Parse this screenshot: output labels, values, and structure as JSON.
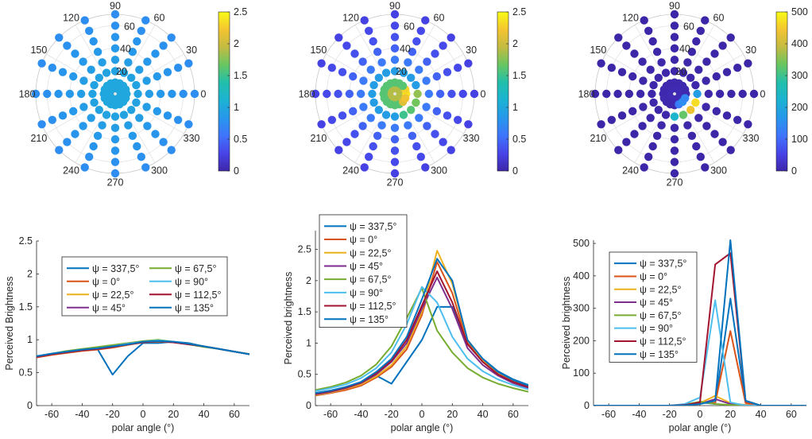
{
  "chart_data": [
    {
      "type": "scatter",
      "subtype": "polar",
      "angle_ticks": [
        "0",
        "30",
        "60",
        "90",
        "120",
        "150",
        "180",
        "210",
        "240",
        "270",
        "300",
        "330"
      ],
      "radius_ticks": [
        "20",
        "40",
        "60"
      ],
      "rlim": [
        0,
        70
      ],
      "radii": [
        5,
        10,
        20,
        30,
        40,
        50,
        60,
        70
      ],
      "colorbar": {
        "ticks": [
          "0",
          "0.5",
          "1",
          "1.5",
          "2",
          "2.5"
        ],
        "clim": [
          0,
          2.5
        ]
      },
      "colormap": [
        "#3e26a8",
        "#4744e8",
        "#3f74fc",
        "#2797eb",
        "#1cb2d3",
        "#21bfab",
        "#68c662",
        "#c2bb41",
        "#f4c431",
        "#f9fb15"
      ],
      "ring_values": {
        "5": 1.0,
        "10": 1.0,
        "20": 0.95,
        "30": 0.9,
        "40": 0.85,
        "50": 0.82,
        "60": 0.78,
        "70": 0.75
      },
      "hotspots": []
    },
    {
      "type": "scatter",
      "subtype": "polar",
      "angle_ticks": [
        "0",
        "30",
        "60",
        "90",
        "120",
        "150",
        "180",
        "210",
        "240",
        "270",
        "300",
        "330"
      ],
      "radius_ticks": [
        "20",
        "40",
        "60"
      ],
      "rlim": [
        0,
        70
      ],
      "radii": [
        5,
        10,
        20,
        30,
        40,
        50,
        60,
        70
      ],
      "colorbar": {
        "ticks": [
          "0",
          "0.5",
          "1",
          "1.5",
          "2",
          "2.5"
        ],
        "clim": [
          0,
          2.5
        ]
      },
      "colormap": [
        "#3e26a8",
        "#4744e8",
        "#3f74fc",
        "#2797eb",
        "#1cb2d3",
        "#21bfab",
        "#68c662",
        "#c2bb41",
        "#f4c431",
        "#f9fb15"
      ],
      "ring_values": {
        "5": 1.9,
        "10": 1.6,
        "20": 0.9,
        "30": 0.6,
        "40": 0.45,
        "50": 0.35,
        "60": 0.3,
        "70": 0.25
      },
      "hotspots": [
        {
          "r": 5,
          "angle": 0,
          "value": 2.3
        },
        {
          "r": 10,
          "angle": 0,
          "value": 2.4
        },
        {
          "r": 10,
          "angle": 337.5,
          "value": 2.2
        },
        {
          "r": 10,
          "angle": 22.5,
          "value": 2.3
        },
        {
          "r": 10,
          "angle": 315,
          "value": 2.1
        },
        {
          "r": 20,
          "angle": 0,
          "value": 1.8
        },
        {
          "r": 20,
          "angle": 337.5,
          "value": 1.7
        },
        {
          "r": 20,
          "angle": 315,
          "value": 1.6
        },
        {
          "r": 20,
          "angle": 292.5,
          "value": 1.5
        }
      ]
    },
    {
      "type": "scatter",
      "subtype": "polar",
      "angle_ticks": [
        "0",
        "30",
        "60",
        "90",
        "120",
        "150",
        "180",
        "210",
        "240",
        "270",
        "300",
        "330"
      ],
      "radius_ticks": [
        "20",
        "40",
        "60"
      ],
      "rlim": [
        0,
        70
      ],
      "radii": [
        5,
        10,
        20,
        30,
        40,
        50,
        60,
        70
      ],
      "colorbar": {
        "ticks": [
          "0",
          "100",
          "200",
          "300",
          "400",
          "500"
        ],
        "clim": [
          0,
          500
        ]
      },
      "colormap": [
        "#3e26a8",
        "#4744e8",
        "#3f74fc",
        "#2797eb",
        "#1cb2d3",
        "#21bfab",
        "#68c662",
        "#c2bb41",
        "#f4c431",
        "#f9fb15"
      ],
      "ring_values": {
        "5": 10,
        "10": 5,
        "20": 2,
        "30": 1,
        "40": 0,
        "50": 0,
        "60": 0,
        "70": 0
      },
      "hotspots": [
        {
          "r": 20,
          "angle": 337.5,
          "value": 470
        },
        {
          "r": 20,
          "angle": 315,
          "value": 440
        },
        {
          "r": 20,
          "angle": 292.5,
          "value": 330
        },
        {
          "r": 20,
          "angle": 270,
          "value": 230
        },
        {
          "r": 10,
          "angle": 315,
          "value": 150
        },
        {
          "r": 10,
          "angle": 337.5,
          "value": 140
        },
        {
          "r": 10,
          "angle": 292.5,
          "value": 120
        },
        {
          "r": 20,
          "angle": 0,
          "value": 180
        }
      ]
    },
    {
      "type": "line",
      "ylabel": "Perceived Brightness",
      "xlabel": "polar angle (°)",
      "xlim": [
        -70,
        70
      ],
      "ylim": [
        0,
        2.5
      ],
      "xticks": [
        "-60",
        "-40",
        "-20",
        "0",
        "20",
        "40",
        "60"
      ],
      "yticks": [
        "0",
        "0.5",
        "1",
        "1.5",
        "2",
        "2.5"
      ],
      "legend_columns": 2,
      "legend_position": "center",
      "x": [
        -70,
        -60,
        -50,
        -40,
        -30,
        -20,
        -10,
        0,
        10,
        20,
        30,
        40,
        50,
        60,
        70
      ],
      "series": [
        {
          "name": "ψ = 337,5°",
          "color": "#0072bd",
          "values": [
            0.74,
            0.78,
            0.82,
            0.84,
            0.86,
            0.47,
            0.75,
            0.95,
            0.95,
            0.97,
            0.95,
            0.9,
            0.86,
            0.82,
            0.78
          ]
        },
        {
          "name": "ψ = 0°",
          "color": "#d95319",
          "values": [
            0.73,
            0.77,
            0.8,
            0.83,
            0.85,
            0.88,
            0.92,
            0.96,
            0.97,
            0.96,
            0.94,
            0.9,
            0.86,
            0.82,
            0.78
          ]
        },
        {
          "name": "ψ = 22,5°",
          "color": "#edb120",
          "values": [
            0.74,
            0.78,
            0.81,
            0.84,
            0.86,
            0.89,
            0.93,
            0.96,
            0.98,
            0.96,
            0.94,
            0.9,
            0.86,
            0.82,
            0.78
          ]
        },
        {
          "name": "ψ = 45°",
          "color": "#7e2f8e",
          "values": [
            0.74,
            0.78,
            0.81,
            0.84,
            0.86,
            0.89,
            0.93,
            0.96,
            0.98,
            0.96,
            0.93,
            0.9,
            0.86,
            0.82,
            0.78
          ]
        },
        {
          "name": "ψ = 67,5°",
          "color": "#77ac30",
          "values": [
            0.75,
            0.79,
            0.83,
            0.86,
            0.89,
            0.92,
            0.95,
            0.98,
            1.0,
            0.97,
            0.93,
            0.89,
            0.86,
            0.82,
            0.78
          ]
        },
        {
          "name": "ψ = 90°",
          "color": "#4dbeee",
          "values": [
            0.75,
            0.79,
            0.82,
            0.85,
            0.87,
            0.9,
            0.94,
            0.97,
            0.99,
            0.97,
            0.94,
            0.9,
            0.86,
            0.82,
            0.78
          ]
        },
        {
          "name": "ψ = 112,5°",
          "color": "#a2142f",
          "values": [
            0.74,
            0.78,
            0.81,
            0.84,
            0.86,
            0.89,
            0.93,
            0.96,
            0.98,
            0.96,
            0.93,
            0.9,
            0.86,
            0.82,
            0.78
          ]
        },
        {
          "name": "ψ = 135°",
          "color": "#0072bd",
          "values": [
            0.75,
            0.79,
            0.82,
            0.85,
            0.87,
            0.9,
            0.93,
            0.97,
            0.98,
            0.97,
            0.94,
            0.9,
            0.86,
            0.82,
            0.78
          ]
        }
      ]
    },
    {
      "type": "line",
      "ylabel": "Perceived brightness",
      "xlabel": "polar angle (°)",
      "xlim": [
        -70,
        70
      ],
      "ylim": [
        0,
        2.8
      ],
      "xticks": [
        "-60",
        "-40",
        "-20",
        "0",
        "20",
        "40",
        "60"
      ],
      "yticks": [
        "0",
        "0.5",
        "1",
        "1.5",
        "2",
        "2.5"
      ],
      "legend_columns": 1,
      "legend_position": "top-left",
      "x": [
        -70,
        -60,
        -50,
        -40,
        -30,
        -20,
        -10,
        0,
        10,
        20,
        30,
        40,
        50,
        60,
        70
      ],
      "series": [
        {
          "name": "ψ = 337,5°",
          "color": "#0072bd",
          "values": [
            0.2,
            0.24,
            0.29,
            0.36,
            0.48,
            0.35,
            0.7,
            1.05,
            1.58,
            1.58,
            1.0,
            0.75,
            0.55,
            0.42,
            0.33
          ]
        },
        {
          "name": "ψ = 0°",
          "color": "#d95319",
          "values": [
            0.16,
            0.2,
            0.25,
            0.32,
            0.45,
            0.62,
            0.9,
            1.45,
            2.3,
            1.8,
            1.0,
            0.7,
            0.5,
            0.38,
            0.3
          ]
        },
        {
          "name": "ψ = 22,5°",
          "color": "#edb120",
          "values": [
            0.17,
            0.21,
            0.27,
            0.34,
            0.47,
            0.65,
            0.95,
            1.5,
            2.48,
            1.95,
            1.05,
            0.73,
            0.52,
            0.39,
            0.31
          ]
        },
        {
          "name": "ψ = 45°",
          "color": "#7e2f8e",
          "values": [
            0.18,
            0.22,
            0.28,
            0.36,
            0.5,
            0.7,
            1.0,
            1.55,
            2.05,
            1.55,
            0.92,
            0.65,
            0.48,
            0.36,
            0.28
          ]
        },
        {
          "name": "ψ = 67,5°",
          "color": "#77ac30",
          "values": [
            0.25,
            0.3,
            0.37,
            0.48,
            0.66,
            0.95,
            1.4,
            1.88,
            1.2,
            0.85,
            0.6,
            0.45,
            0.35,
            0.28,
            0.22
          ]
        },
        {
          "name": "ψ = 90°",
          "color": "#4dbeee",
          "values": [
            0.23,
            0.28,
            0.34,
            0.44,
            0.6,
            0.85,
            1.3,
            1.9,
            1.65,
            1.1,
            0.75,
            0.55,
            0.42,
            0.33,
            0.26
          ]
        },
        {
          "name": "ψ = 112,5°",
          "color": "#a2142f",
          "values": [
            0.19,
            0.23,
            0.29,
            0.37,
            0.52,
            0.72,
            1.05,
            1.6,
            2.15,
            1.65,
            0.98,
            0.7,
            0.5,
            0.38,
            0.3
          ]
        },
        {
          "name": "ψ = 135°",
          "color": "#0072bd",
          "values": [
            0.2,
            0.24,
            0.3,
            0.38,
            0.54,
            0.75,
            1.1,
            1.7,
            2.35,
            2.0,
            1.05,
            0.75,
            0.54,
            0.41,
            0.32
          ]
        }
      ]
    },
    {
      "type": "line",
      "ylabel": "Perceived brightness",
      "xlabel": "polar angle (°)",
      "xlim": [
        -70,
        70
      ],
      "ylim": [
        0,
        510
      ],
      "xticks": [
        "-60",
        "-40",
        "-20",
        "0",
        "20",
        "40",
        "60"
      ],
      "yticks": [
        "0",
        "100",
        "200",
        "300",
        "400",
        "500"
      ],
      "legend_columns": 1,
      "legend_position": "top-left",
      "x": [
        -70,
        -60,
        -50,
        -40,
        -30,
        -20,
        -10,
        0,
        10,
        20,
        30,
        40,
        50,
        60,
        70
      ],
      "series": [
        {
          "name": "ψ = 337,5°",
          "color": "#0072bd",
          "values": [
            0,
            0,
            0,
            0,
            0,
            0,
            0,
            10,
            5,
            330,
            10,
            0,
            0,
            0,
            0
          ]
        },
        {
          "name": "ψ = 0°",
          "color": "#d95319",
          "values": [
            0,
            0,
            0,
            0,
            0,
            0,
            0,
            12,
            8,
            230,
            8,
            0,
            0,
            0,
            0
          ]
        },
        {
          "name": "ψ = 22,5°",
          "color": "#edb120",
          "values": [
            0,
            0,
            0,
            0,
            0,
            0,
            2,
            8,
            30,
            8,
            2,
            0,
            0,
            0,
            0
          ]
        },
        {
          "name": "ψ = 45°",
          "color": "#7e2f8e",
          "values": [
            0,
            0,
            0,
            0,
            0,
            0,
            1,
            5,
            20,
            5,
            1,
            0,
            0,
            0,
            0
          ]
        },
        {
          "name": "ψ = 67,5°",
          "color": "#77ac30",
          "values": [
            0,
            0,
            0,
            0,
            0,
            0,
            3,
            12,
            5,
            2,
            0,
            0,
            0,
            0,
            0
          ]
        },
        {
          "name": "ψ = 90°",
          "color": "#4dbeee",
          "values": [
            0,
            0,
            0,
            0,
            0,
            0,
            5,
            25,
            325,
            10,
            0,
            0,
            0,
            0,
            0
          ]
        },
        {
          "name": "ψ = 112,5°",
          "color": "#a2142f",
          "values": [
            0,
            0,
            0,
            0,
            0,
            0,
            2,
            10,
            435,
            470,
            15,
            0,
            0,
            0,
            0
          ]
        },
        {
          "name": "ψ = 135°",
          "color": "#0072bd",
          "values": [
            0,
            0,
            0,
            0,
            0,
            0,
            1,
            5,
            15,
            510,
            15,
            0,
            0,
            0,
            0
          ]
        }
      ]
    }
  ]
}
